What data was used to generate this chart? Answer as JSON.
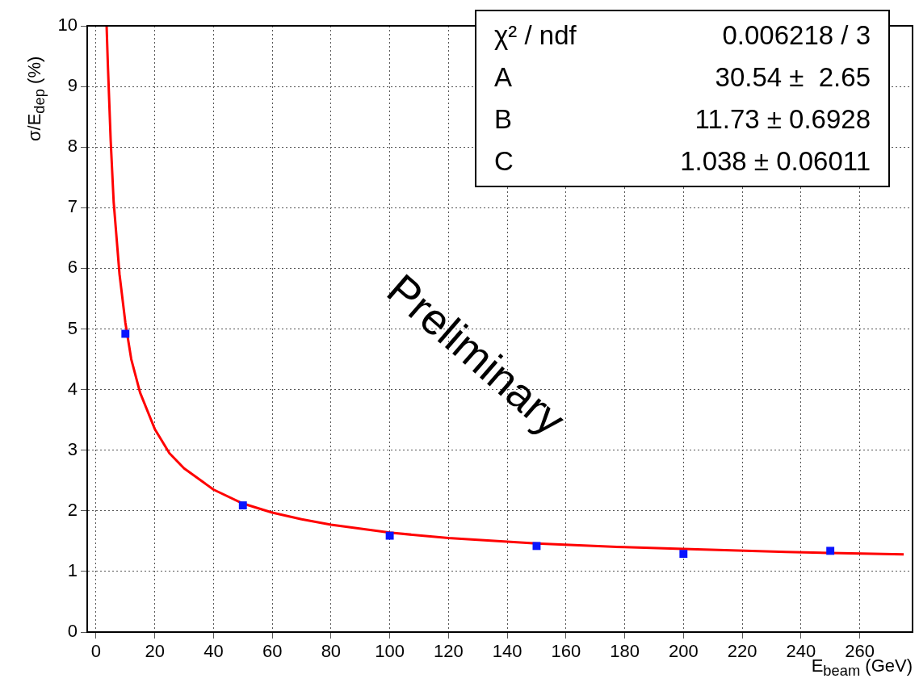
{
  "chart_data": {
    "type": "scatter",
    "xlabel": "E$_{beam}$ (GeV)",
    "ylabel": "σ/E$_{dep}$ (%)",
    "xlim": [
      -3,
      278
    ],
    "xticks": [
      0,
      20,
      40,
      60,
      80,
      100,
      120,
      140,
      160,
      180,
      200,
      220,
      240,
      260
    ],
    "ylim": [
      0,
      10
    ],
    "yticks": [
      0,
      1,
      2,
      3,
      4,
      5,
      6,
      7,
      8,
      9,
      10
    ],
    "grid": true,
    "marker": "square",
    "series": [
      {
        "type": "line",
        "marker": "none",
        "color": "#ff0000",
        "x": [
          3.6,
          4,
          5,
          6,
          8,
          10,
          12,
          15,
          20,
          25,
          30,
          40,
          50,
          60,
          70,
          80,
          100,
          120,
          150,
          180,
          200,
          235,
          275
        ],
        "values": [
          10,
          9.4,
          8.1,
          7.1,
          5.9,
          5.1,
          4.5,
          3.95,
          3.35,
          2.95,
          2.7,
          2.35,
          2.12,
          1.97,
          1.86,
          1.77,
          1.64,
          1.55,
          1.46,
          1.4,
          1.37,
          1.32,
          1.28
        ]
      },
      {
        "type": "scatter",
        "color": "#0a14ff",
        "x": [
          10,
          50,
          100,
          150,
          200,
          250
        ],
        "values": [
          4.92,
          2.09,
          1.59,
          1.42,
          1.29,
          1.34
        ]
      }
    ],
    "annotations": [
      "χ² / ndf",
      "0.006218 / 3",
      "A",
      "30.54 ±  2.65",
      "B",
      "11.73 ± 0.6928",
      "C",
      "1.038 ± 0.06011",
      "Preliminary"
    ]
  }
}
